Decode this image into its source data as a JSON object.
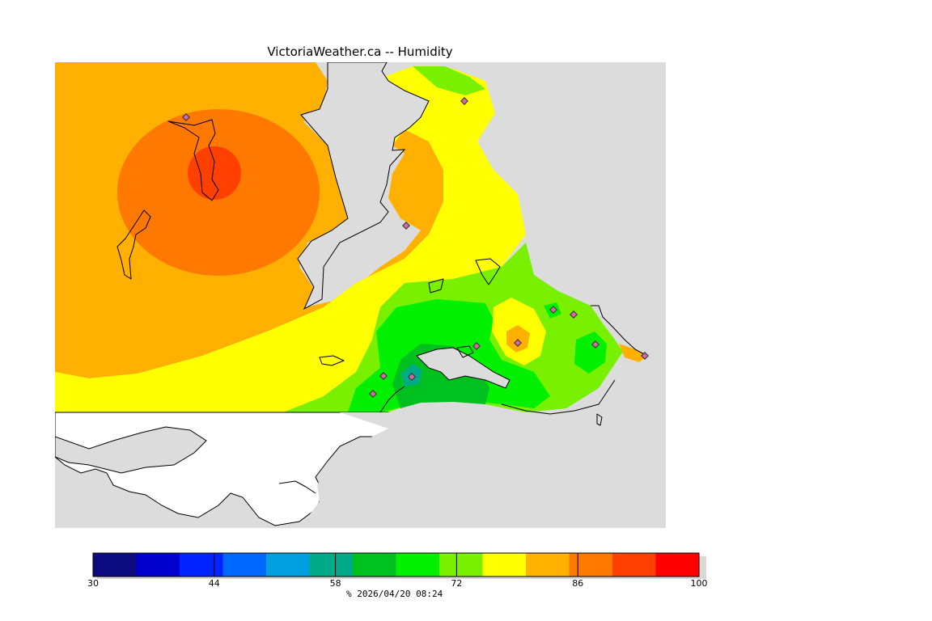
{
  "title": "VictoriaWeather.ca -- Humidity",
  "colors": {
    "background": "#dcdcdc",
    "outside": "#ffffff",
    "coastline": "#000000",
    "station_marker": "#d06aa0"
  },
  "colorbar": {
    "min": 30,
    "max": 100,
    "tick_labels": [
      "30",
      "44",
      "58",
      "72",
      "86",
      "100"
    ],
    "bins": [
      {
        "color": "#0c0c80"
      },
      {
        "color": "#0000cc"
      },
      {
        "color": "#0024ff"
      },
      {
        "color": "#0068ff"
      },
      {
        "color": "#00a0e0"
      },
      {
        "color": "#00aa88"
      },
      {
        "color": "#00c020"
      },
      {
        "color": "#00f000"
      },
      {
        "color": "#78f000"
      },
      {
        "color": "#ffff00"
      },
      {
        "color": "#ffb000"
      },
      {
        "color": "#ff7800"
      },
      {
        "color": "#ff4000"
      },
      {
        "color": "#ff0000"
      }
    ],
    "unit_label": "%  2026/04/20 08:24"
  },
  "contour_levels": {
    "orange": "#ffb000",
    "dark_orange": "#ff7800",
    "red_orange": "#ff4000",
    "yellow": "#ffff00",
    "light_green": "#78f000",
    "green": "#00f000",
    "dark_green": "#00c020",
    "teal": "#00aa88"
  }
}
